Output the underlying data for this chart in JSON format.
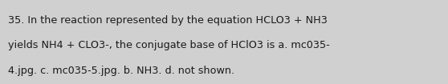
{
  "text_line1": "35. In the reaction represented by the equation HCLO3 + NH3",
  "text_line2": "yields NH4 + CLO3-, the conjugate base of HClO3 is a. mc035-",
  "text_line3": "4.jpg. c. mc035-5.jpg. b. NH3. d. not shown.",
  "background_color": "#d0d0d0",
  "text_color": "#1a1a1a",
  "font_size": 9.2,
  "fig_width": 5.58,
  "fig_height": 1.05,
  "dpi": 100
}
